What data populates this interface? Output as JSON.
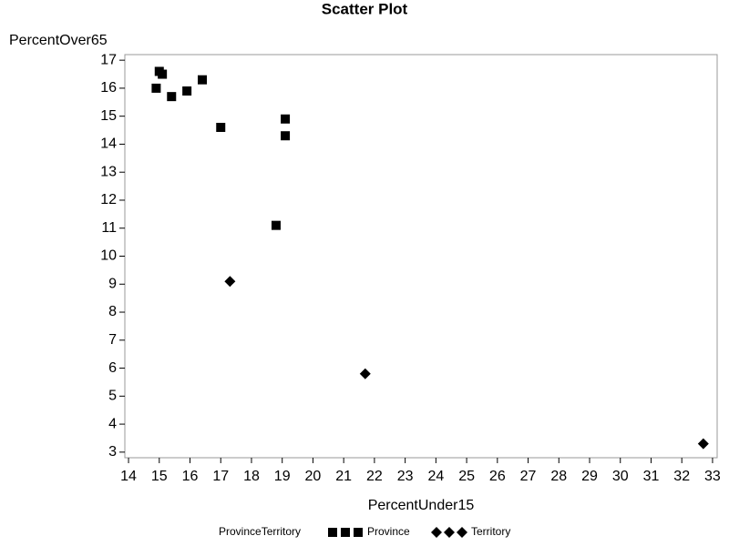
{
  "chart_data": {
    "type": "scatter",
    "title": "Scatter Plot",
    "x_label": "PercentUnder15",
    "y_label": "PercentOver65",
    "legend_title": "ProvinceTerritory",
    "legend_position": "bottom",
    "xlim": [
      13.88,
      33.15
    ],
    "ylim": [
      2.8,
      17.2
    ],
    "xticks": [
      14,
      15,
      16,
      17,
      18,
      19,
      20,
      21,
      22,
      23,
      24,
      25,
      26,
      27,
      28,
      29,
      30,
      31,
      32,
      33
    ],
    "yticks": [
      3,
      4,
      5,
      6,
      7,
      8,
      9,
      10,
      11,
      12,
      13,
      14,
      15,
      16,
      17
    ],
    "series": [
      {
        "name": "Province",
        "color": "#000000",
        "marker": "square",
        "x": [
          14.9,
          15.0,
          15.1,
          15.4,
          15.9,
          16.4,
          17.0,
          19.1,
          19.1,
          18.8
        ],
        "values": [
          16.0,
          16.6,
          16.5,
          15.7,
          15.9,
          16.3,
          14.6,
          14.9,
          14.3,
          11.1
        ]
      },
      {
        "name": "Territory",
        "color": "#000000",
        "marker": "diamond",
        "x": [
          17.3,
          21.7,
          32.7
        ],
        "values": [
          9.1,
          5.8,
          3.3
        ]
      }
    ]
  }
}
